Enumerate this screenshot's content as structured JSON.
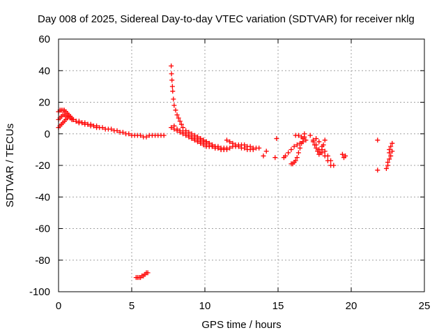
{
  "chart_data": {
    "type": "scatter",
    "title": "Day 008 of 2025, Sidereal Day-to-day VTEC variation (SDTVAR) for receiver nklg",
    "xlabel": "GPS time / hours",
    "ylabel": "SDTVAR / TECUs",
    "xlim": [
      0,
      25
    ],
    "ylim": [
      -100,
      60
    ],
    "xticks": [
      0,
      5,
      10,
      15,
      20,
      25
    ],
    "yticks": [
      -100,
      -80,
      -60,
      -40,
      -20,
      0,
      20,
      40,
      60
    ],
    "grid": true,
    "marker": "+",
    "color": "#ff0000",
    "series": [
      {
        "name": "SDTVAR",
        "x": [
          0.0,
          0.1,
          0.2,
          0.3,
          0.4,
          0.5,
          0.6,
          0.7,
          0.8,
          0.9,
          1.0,
          1.2,
          1.4,
          1.6,
          1.8,
          2.0,
          2.2,
          2.4,
          2.6,
          2.8,
          3.0,
          3.2,
          3.4,
          3.6,
          3.8,
          4.0,
          4.2,
          4.4,
          4.6,
          4.8,
          5.0,
          5.2,
          5.4,
          5.6,
          5.8,
          6.0,
          6.2,
          6.4,
          6.6,
          6.8,
          7.0,
          7.2,
          0.0,
          0.1,
          0.2,
          0.3,
          0.4,
          0.5,
          0.6,
          0.7,
          0.8,
          0.9,
          1.0,
          1.2,
          1.4,
          1.6,
          1.8,
          2.0,
          2.2,
          2.4,
          2.6,
          0.0,
          0.1,
          0.2,
          0.3,
          0.4,
          0.5,
          0.6,
          0.7,
          0.8,
          1.0,
          1.2,
          1.4,
          7.7,
          7.72,
          7.75,
          7.78,
          7.8,
          7.85,
          7.9,
          8.0,
          8.1,
          8.2,
          8.3,
          8.4,
          8.5,
          8.7,
          8.9,
          9.1,
          9.3,
          9.5,
          9.7,
          9.9,
          10.1,
          10.3,
          10.5,
          10.7,
          10.9,
          11.1,
          11.3,
          11.5,
          7.9,
          8.1,
          8.3,
          8.5,
          8.7,
          8.9,
          9.1,
          9.3,
          9.5,
          9.7,
          9.9,
          10.1,
          10.3,
          10.5,
          10.7,
          10.9,
          11.1,
          11.3,
          7.7,
          7.9,
          8.1,
          8.3,
          8.5,
          8.7,
          8.9,
          9.1,
          9.3,
          9.5,
          9.7,
          9.9,
          10.1,
          10.3,
          10.5,
          10.7,
          9.5,
          9.7,
          9.9,
          10.1,
          10.3,
          10.5,
          10.7,
          10.9,
          11.1,
          11.3,
          11.5,
          11.7,
          11.9,
          12.1,
          12.3,
          12.5,
          12.7,
          12.9,
          13.1,
          13.3,
          13.5,
          13.7,
          11.5,
          11.7,
          11.9,
          12.1,
          12.3,
          12.5,
          12.7,
          12.9,
          13.1,
          13.3,
          5.3,
          5.4,
          5.5,
          5.6,
          5.7,
          5.8,
          5.9,
          6.0,
          6.1,
          14.0,
          14.2,
          14.8,
          14.9,
          15.4,
          15.5,
          15.7,
          15.9,
          16.1,
          16.3,
          16.5,
          16.7,
          16.9,
          15.9,
          16.0,
          16.1,
          16.2,
          16.3,
          16.4,
          16.5,
          16.6,
          16.7,
          16.8,
          16.2,
          16.4,
          16.6,
          16.8,
          17.2,
          17.4,
          17.6,
          17.8,
          18.0,
          18.2,
          18.4,
          18.6,
          17.4,
          17.5,
          17.6,
          17.7,
          17.8,
          17.9,
          18.0,
          18.1,
          18.2,
          17.6,
          17.8,
          18.0,
          18.2,
          18.4,
          18.6,
          18.8,
          19.4,
          19.5,
          19.6,
          21.8,
          21.8,
          22.4,
          22.5,
          22.6,
          22.7,
          22.8,
          22.6,
          22.7,
          22.5,
          22.6,
          22.8
        ],
        "y": [
          9,
          10,
          11,
          12,
          12,
          12,
          11,
          11,
          10,
          9,
          9,
          8,
          7,
          7,
          6,
          6,
          5,
          5,
          4,
          4,
          4,
          3,
          3,
          3,
          2,
          2,
          1,
          1,
          0,
          0,
          -1,
          -1,
          -1,
          -1,
          -2,
          -2,
          -1,
          -1,
          -1,
          -1,
          -1,
          -1,
          14,
          15,
          15,
          15,
          15,
          14,
          13,
          12,
          11,
          10,
          9,
          8,
          8,
          7,
          7,
          6,
          6,
          5,
          5,
          4,
          5,
          6,
          7,
          8,
          9,
          10,
          11,
          11,
          9,
          8,
          7,
          43,
          38,
          34,
          30,
          27,
          22,
          18,
          15,
          12,
          10,
          8,
          6,
          4,
          2,
          1,
          0,
          -1,
          -2,
          -3,
          -4,
          -5,
          -6,
          -7,
          -8,
          -9,
          -10,
          -10,
          -10,
          5,
          3,
          2,
          1,
          0,
          -1,
          -2,
          -3,
          -4,
          -5,
          -6,
          -7,
          -8,
          -8,
          -9,
          -9,
          -10,
          -10,
          4,
          3,
          2,
          1,
          0,
          -1,
          -2,
          -3,
          -4,
          -5,
          -6,
          -7,
          -8,
          -8,
          -8,
          -9,
          -2,
          -3,
          -4,
          -5,
          -6,
          -7,
          -8,
          -8,
          -9,
          -9,
          -9,
          -9,
          -8,
          -8,
          -7,
          -7,
          -7,
          -8,
          -8,
          -9,
          -9,
          -9,
          -4,
          -5,
          -6,
          -7,
          -8,
          -9,
          -9,
          -10,
          -10,
          -10,
          -91,
          -91,
          -91,
          -91,
          -90,
          -90,
          -89,
          -88,
          -88,
          -14,
          -11,
          -15,
          -3,
          -15,
          -14,
          -12,
          -10,
          -8,
          -7,
          -6,
          -5,
          -4,
          -19,
          -19,
          -18,
          -17,
          -15,
          -12,
          -9,
          -6,
          -3,
          0,
          -1,
          -1,
          -2,
          -2,
          -1,
          -4,
          -7,
          -10,
          -12,
          -14,
          -17,
          -20,
          -5,
          -7,
          -9,
          -11,
          -13,
          -12,
          -10,
          -7,
          -4,
          -3,
          -5,
          -8,
          -11,
          -14,
          -17,
          -20,
          -13,
          -15,
          -14,
          -4,
          -23,
          -22,
          -18,
          -12,
          -8,
          -6,
          -10,
          -14,
          -20,
          -16,
          -11
        ]
      }
    ]
  }
}
